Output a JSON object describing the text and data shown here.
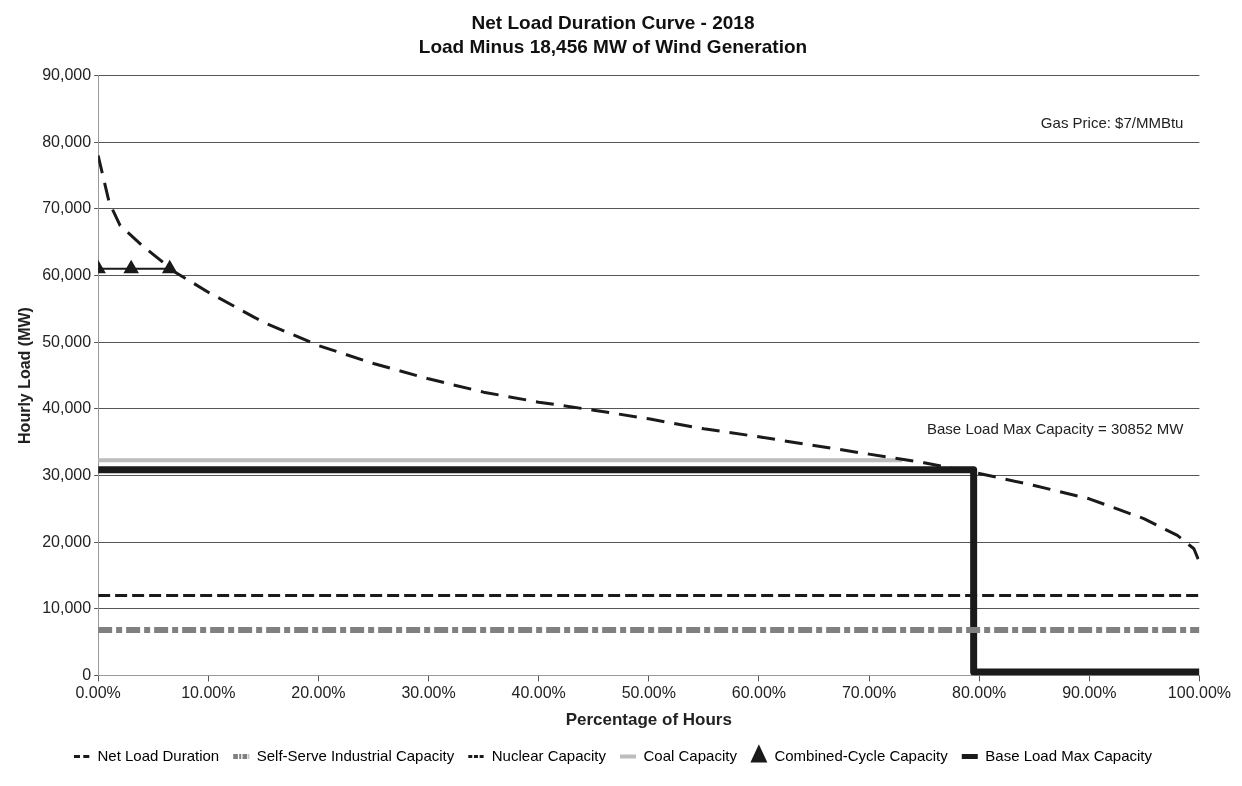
{
  "chart_data": {
    "type": "line",
    "title": "Net Load Duration Curve - 2018",
    "subtitle": "Load Minus 18,456 MW of Wind Generation",
    "xlabel": "Percentage of Hours",
    "ylabel": "Hourly Load (MW)",
    "annotations": [
      "Gas Price: $7/MMBtu",
      "Base Load Max Capacity = 30852 MW"
    ],
    "series": [
      {
        "name": "Net Load Duration",
        "color": "#1a1a1a",
        "line_style": "dashed",
        "marker": "none",
        "x": [
          0,
          1,
          2,
          4,
          7,
          10,
          15,
          20,
          25,
          30,
          35,
          40,
          45,
          50,
          55,
          60,
          65,
          70,
          75,
          80,
          85,
          90,
          95,
          98,
          99.5,
          100
        ],
        "values": [
          78000,
          71000,
          67500,
          64500,
          60500,
          57500,
          53000,
          49500,
          46800,
          44500,
          42500,
          41000,
          39800,
          38500,
          37000,
          35800,
          34500,
          33200,
          31900,
          30300,
          28500,
          26500,
          23500,
          21000,
          19000,
          17000
        ]
      },
      {
        "name": "Self-Serve Industrial Capacity",
        "color": "#808080",
        "line_style": "dashed",
        "marker": "none",
        "x": [
          0,
          100
        ],
        "values": [
          6800,
          6800
        ]
      },
      {
        "name": "Nuclear Capacity",
        "color": "#1a1a1a",
        "line_style": "dashed",
        "marker": "none",
        "x": [
          0,
          100
        ],
        "values": [
          12000,
          12000
        ]
      },
      {
        "name": "Coal Capacity",
        "color": "#bdbdbd",
        "line_style": "solid",
        "marker": "none",
        "x": [
          0,
          73
        ],
        "values": [
          32300,
          32300
        ]
      },
      {
        "name": "Combined-Cycle Capacity",
        "color": "#1a1a1a",
        "line_style": "solid",
        "marker": "triangle",
        "x": [
          0,
          3,
          6.5
        ],
        "values": [
          61000,
          61000,
          61000
        ]
      },
      {
        "name": "Base Load Max Capacity",
        "color": "#1a1a1a",
        "line_style": "solid",
        "marker": "none",
        "x": [
          0,
          79.5,
          79.5,
          100
        ],
        "values": [
          30852,
          30852,
          500,
          500
        ]
      }
    ],
    "xlim": [
      0,
      100
    ],
    "xticks": [
      {
        "value": 0,
        "label": "0.00%"
      },
      {
        "value": 10,
        "label": "10.00%"
      },
      {
        "value": 20,
        "label": "20.00%"
      },
      {
        "value": 30,
        "label": "30.00%"
      },
      {
        "value": 40,
        "label": "40.00%"
      },
      {
        "value": 50,
        "label": "50.00%"
      },
      {
        "value": 60,
        "label": "60.00%"
      },
      {
        "value": 70,
        "label": "70.00%"
      },
      {
        "value": 80,
        "label": "80.00%"
      },
      {
        "value": 90,
        "label": "90.00%"
      },
      {
        "value": 100,
        "label": "100.00%"
      }
    ],
    "ylim": [
      0,
      90000
    ],
    "yticks": [
      {
        "value": 0,
        "label": "0"
      },
      {
        "value": 10000,
        "label": "10,000"
      },
      {
        "value": 20000,
        "label": "20,000"
      },
      {
        "value": 30000,
        "label": "30,000"
      },
      {
        "value": 40000,
        "label": "40,000"
      },
      {
        "value": 50000,
        "label": "50,000"
      },
      {
        "value": 60000,
        "label": "60,000"
      },
      {
        "value": 70000,
        "label": "70,000"
      },
      {
        "value": 80000,
        "label": "80,000"
      },
      {
        "value": 90000,
        "label": "90,000"
      }
    ],
    "grid": "y",
    "legend": "bottom"
  }
}
